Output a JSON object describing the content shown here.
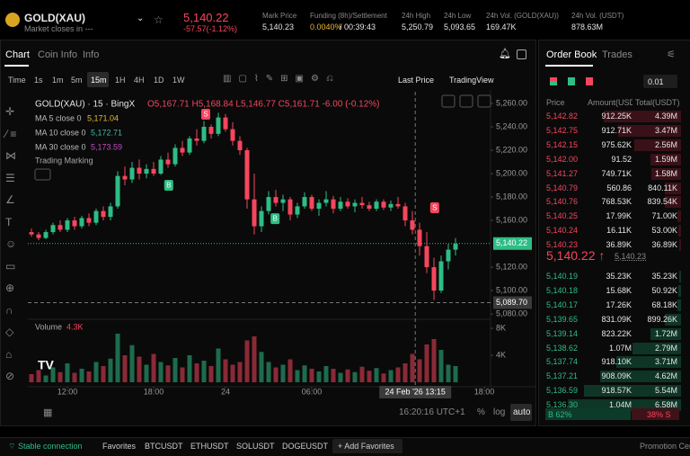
{
  "header": {
    "symbol": "GOLD(XAU)",
    "subtitle": "Market closes in ---",
    "price": "5,140.22",
    "change": "-57.57(-1.12%)",
    "stats": [
      {
        "label": "Mark Price",
        "value": "5,140.23"
      },
      {
        "label": "Funding (8h)/Settlement",
        "value": "0.0040%",
        "extra": "/ 00:39:43"
      },
      {
        "label": "24h High",
        "value": "5,250.79"
      },
      {
        "label": "24h Low",
        "value": "5,093.65"
      },
      {
        "label": "24h Vol. (GOLD(XAU))",
        "value": "169.47K"
      },
      {
        "label": "24h Vol. (USDT)",
        "value": "878.63M"
      }
    ]
  },
  "tabs": [
    "Chart",
    "Coin Info",
    "Info"
  ],
  "intervals": [
    "Time",
    "1s",
    "1m",
    "5m",
    "15m",
    "1H",
    "4H",
    "1D",
    "1W"
  ],
  "price_source": "Last Price",
  "view": "TradingView",
  "legend": {
    "title": "GOLD(XAU) · 15 · BingX",
    "ohlc": "O5,167.71 H5,168.84 L5,146.77 C5,161.71 -6.00 (-0.12%)",
    "indicators": [
      {
        "name": "MA 5 close 0",
        "value": "5,171.04",
        "color": "#e8b930"
      },
      {
        "name": "MA 10 close 0",
        "value": "5,172.71",
        "color": "#3fb8a8"
      },
      {
        "name": "MA 30 close 0",
        "value": "5,173.59",
        "color": "#c04ec0"
      }
    ],
    "marking": "Trading Marking",
    "volume_label": "Volume",
    "volume_value": "4.3K"
  },
  "chart_data": {
    "type": "candlestick",
    "up_color": "#2ebd85",
    "down_color": "#f6465d",
    "xlim": [
      -0.5,
      65
    ],
    "ylim": [
      5077,
      5270
    ],
    "vlim": [
      0,
      9
    ],
    "grid": false,
    "xticks": [
      {
        "value": 5,
        "label": "12:00"
      },
      {
        "value": 17,
        "label": "18:00"
      },
      {
        "value": 27,
        "label": "24"
      },
      {
        "value": 39,
        "label": "06:00"
      },
      {
        "value": 63,
        "label": "18:00"
      }
    ],
    "yticks": [
      {
        "value": 5260,
        "label": "5,260.00"
      },
      {
        "value": 5240,
        "label": "5,240.00"
      },
      {
        "value": 5220,
        "label": "5,220.00"
      },
      {
        "value": 5200,
        "label": "5,200.00"
      },
      {
        "value": 5180,
        "label": "5,180.00"
      },
      {
        "value": 5160,
        "label": "5,160.00"
      },
      {
        "value": 5120,
        "label": "5,120.00"
      },
      {
        "value": 5100,
        "label": "5,100.00"
      },
      {
        "value": 5080,
        "label": "5,080.00"
      }
    ],
    "vticks": [
      {
        "value": 8,
        "label": "8K"
      },
      {
        "value": 4,
        "label": "4K"
      }
    ],
    "last_price": {
      "value": 5140.22,
      "label": "5,140.22"
    },
    "crosshair": {
      "x": 53.4,
      "x_label": "24 Feb '26  13:15",
      "y": 5089.7,
      "y_label": "5,089.70"
    },
    "trade_marks": [
      {
        "label": "S",
        "x": 24.25,
        "y": 5250.8,
        "color": "#f6465d"
      },
      {
        "label": "B",
        "x": 19.1,
        "y": 5190,
        "color": "#2ebd85"
      },
      {
        "label": "B",
        "x": 33.9,
        "y": 5161.5,
        "color": "#2ebd85"
      },
      {
        "label": "S",
        "x": 56.1,
        "y": 5170.8,
        "color": "#f6465d"
      }
    ],
    "open": [
      5150,
      5148,
      5145,
      5150,
      5156,
      5152,
      5160,
      5155,
      5162,
      5158,
      5168,
      5163,
      5172,
      5198,
      5195,
      5205,
      5200,
      5204,
      5200,
      5212,
      5208,
      5222,
      5218,
      5230,
      5228,
      5240,
      5234,
      5248,
      5238,
      5228,
      5220,
      5178,
      5155,
      5168,
      5180,
      5175,
      5178,
      5165,
      5172,
      5180,
      5170,
      5175,
      5178,
      5170,
      5176,
      5172,
      5175,
      5173,
      5170,
      5176,
      5171,
      5174,
      5172,
      5160,
      5152,
      5138,
      5120,
      5100,
      5125,
      5135
    ],
    "high": [
      5153,
      5150,
      5152,
      5158,
      5160,
      5162,
      5163,
      5164,
      5166,
      5170,
      5172,
      5175,
      5202,
      5206,
      5210,
      5212,
      5208,
      5210,
      5215,
      5218,
      5225,
      5228,
      5232,
      5238,
      5245,
      5242,
      5252,
      5251,
      5244,
      5232,
      5222,
      5200,
      5172,
      5185,
      5186,
      5182,
      5180,
      5175,
      5184,
      5182,
      5178,
      5185,
      5181,
      5180,
      5179,
      5178,
      5180,
      5176,
      5178,
      5178,
      5177,
      5180,
      5175,
      5168,
      5158,
      5150,
      5128,
      5130,
      5140,
      5145
    ],
    "low": [
      5146,
      5143,
      5144,
      5148,
      5150,
      5150,
      5152,
      5153,
      5155,
      5156,
      5160,
      5160,
      5170,
      5190,
      5192,
      5195,
      5196,
      5198,
      5199,
      5205,
      5206,
      5215,
      5216,
      5224,
      5226,
      5230,
      5232,
      5236,
      5224,
      5216,
      5170,
      5148,
      5150,
      5165,
      5172,
      5168,
      5160,
      5162,
      5170,
      5168,
      5164,
      5172,
      5166,
      5168,
      5170,
      5167,
      5170,
      5168,
      5168,
      5169,
      5168,
      5170,
      5155,
      5148,
      5130,
      5115,
      5092,
      5098,
      5118,
      5130
    ],
    "close": [
      5148,
      5145,
      5150,
      5156,
      5152,
      5160,
      5155,
      5162,
      5158,
      5168,
      5163,
      5172,
      5198,
      5195,
      5205,
      5200,
      5204,
      5200,
      5212,
      5208,
      5222,
      5218,
      5230,
      5228,
      5240,
      5234,
      5248,
      5238,
      5228,
      5220,
      5178,
      5155,
      5168,
      5180,
      5175,
      5178,
      5165,
      5172,
      5180,
      5170,
      5175,
      5178,
      5170,
      5176,
      5172,
      5175,
      5173,
      5170,
      5176,
      5171,
      5174,
      5172,
      5160,
      5152,
      5138,
      5120,
      5100,
      5125,
      5135,
      5140
    ],
    "volume": [
      1.2,
      1.8,
      1,
      2.2,
      1.5,
      2.8,
      1.4,
      2,
      1.6,
      3,
      2.4,
      3.5,
      7.2,
      4,
      5.5,
      3.8,
      2.6,
      4.2,
      3,
      2.5,
      3.6,
      2.2,
      4,
      2.8,
      3.2,
      2.4,
      5,
      3.4,
      2.6,
      3,
      6.2,
      6.8,
      4.5,
      3,
      2.2,
      2.6,
      3.4,
      1.8,
      2.5,
      2,
      1.6,
      2.4,
      2,
      1.4,
      1.9,
      1.5,
      2.3,
      1.7,
      2.1,
      1.3,
      1.8,
      2.2,
      2.8,
      4.2,
      3.4,
      5.6,
      6.4,
      4.8,
      2.6,
      2.4
    ]
  },
  "chart_footer": {
    "time": "16:20:16 UTC+1",
    "percent": "%",
    "log": "log",
    "auto": "auto"
  },
  "order_book": {
    "tabs": [
      "Order Book",
      "Trades"
    ],
    "step": "0.01",
    "columns": [
      "Price",
      "Amount(USDT)",
      "Total(USDT)"
    ],
    "asks": [
      [
        "5,142.82",
        "912.25K",
        "4.39M"
      ],
      [
        "5,142.75",
        "912.71K",
        "3.47M"
      ],
      [
        "5,142.15",
        "975.62K",
        "2.56M"
      ],
      [
        "5,142.00",
        "91.52",
        "1.59M"
      ],
      [
        "5,141.27",
        "749.71K",
        "1.58M"
      ],
      [
        "5,140.79",
        "560.86",
        "840.11K"
      ],
      [
        "5,140.76",
        "768.53K",
        "839.54K"
      ],
      [
        "5,140.25",
        "17.99K",
        "71.00K"
      ],
      [
        "5,140.24",
        "16.11K",
        "53.00K"
      ],
      [
        "5,140.23",
        "36.89K",
        "36.89K"
      ]
    ],
    "mid": "5,140.22 ↑",
    "mark": "5,140.23",
    "bids": [
      [
        "5,140.19",
        "35.23K",
        "35.23K"
      ],
      [
        "5,140.18",
        "15.68K",
        "50.92K"
      ],
      [
        "5,140.17",
        "17.26K",
        "68.18K"
      ],
      [
        "5,139.65",
        "831.09K",
        "899.26K"
      ],
      [
        "5,139.14",
        "823.22K",
        "1.72M"
      ],
      [
        "5,138.62",
        "1.07M",
        "2.79M"
      ],
      [
        "5,137.74",
        "918.10K",
        "3.71M"
      ],
      [
        "5,137.21",
        "908.09K",
        "4.62M"
      ],
      [
        "5,136.59",
        "918.57K",
        "5.54M"
      ],
      [
        "5,136.30",
        "1.04M",
        "6.58M"
      ]
    ],
    "buy": "B  62%",
    "sell": "38%  S"
  },
  "footer": {
    "status": "Stable connection",
    "items": [
      "Favorites",
      "BTCUSDT",
      "ETHUSDT",
      "SOLUSDT",
      "DOGEUSDT",
      "+ Add Favorites"
    ],
    "promo": "Promotion Cen"
  }
}
